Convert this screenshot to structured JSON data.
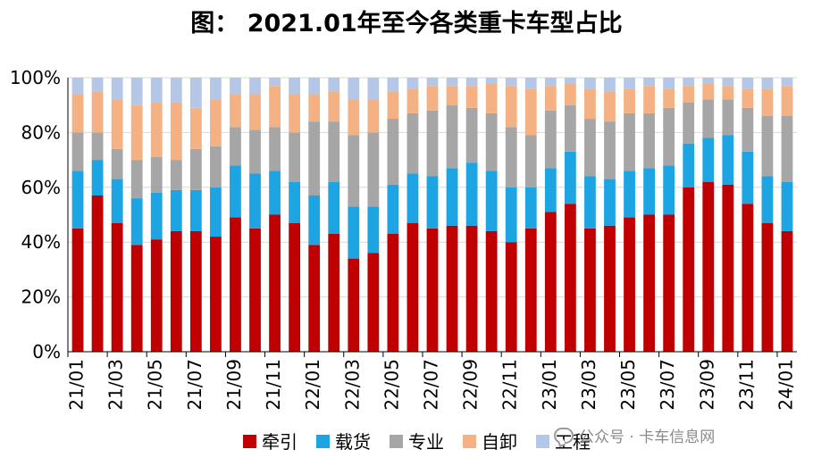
{
  "chart_data": {
    "type": "bar",
    "stacked": true,
    "title": "图： 2021.01年至今各类重卡车型占比",
    "ylim": [
      0,
      100
    ],
    "yticks": [
      "0%",
      "20%",
      "40%",
      "60%",
      "80%",
      "100%"
    ],
    "categories": [
      "21/01",
      "21/02",
      "21/03",
      "21/04",
      "21/05",
      "21/06",
      "21/07",
      "21/08",
      "21/09",
      "21/10",
      "21/11",
      "21/12",
      "22/01",
      "22/02",
      "22/03",
      "22/04",
      "22/05",
      "22/06",
      "22/07",
      "22/08",
      "22/09",
      "22/10",
      "22/11",
      "22/12",
      "23/01",
      "23/02",
      "23/03",
      "23/04",
      "23/05",
      "23/06",
      "23/07",
      "23/08",
      "23/09",
      "23/10",
      "23/11",
      "23/12",
      "24/01"
    ],
    "tick_labels": [
      "21/01",
      "21/03",
      "21/05",
      "21/07",
      "21/09",
      "21/11",
      "22/01",
      "22/03",
      "22/05",
      "22/07",
      "22/09",
      "22/11",
      "23/01",
      "23/03",
      "23/05",
      "23/07",
      "23/09",
      "23/11",
      "24/01"
    ],
    "legend_position": "bottom",
    "series": [
      {
        "name": "牵引",
        "color": "#C00000",
        "values": [
          45,
          57,
          47,
          39,
          41,
          44,
          44,
          42,
          49,
          45,
          50,
          47,
          39,
          43,
          34,
          36,
          43,
          47,
          45,
          46,
          46,
          44,
          40,
          45,
          51,
          54,
          45,
          46,
          49,
          50,
          50,
          60,
          62,
          61,
          54,
          47,
          44
        ]
      },
      {
        "name": "载货",
        "color": "#1CA4E3",
        "values": [
          21,
          13,
          16,
          17,
          17,
          15,
          15,
          18,
          19,
          20,
          16,
          15,
          18,
          19,
          19,
          17,
          18,
          18,
          19,
          21,
          23,
          22,
          20,
          15,
          16,
          19,
          19,
          17,
          17,
          17,
          18,
          16,
          16,
          18,
          19,
          17,
          18
        ]
      },
      {
        "name": "专业",
        "color": "#A6A6A6",
        "values": [
          14,
          10,
          11,
          14,
          13,
          11,
          15,
          15,
          14,
          16,
          16,
          18,
          27,
          22,
          26,
          27,
          24,
          22,
          24,
          23,
          20,
          21,
          22,
          19,
          21,
          17,
          21,
          21,
          21,
          20,
          21,
          15,
          14,
          13,
          16,
          22,
          24
        ]
      },
      {
        "name": "自卸",
        "color": "#F4B183",
        "values": [
          14,
          15,
          18,
          20,
          20,
          21,
          15,
          17,
          12,
          13,
          15,
          14,
          10,
          11,
          13,
          12,
          10,
          9,
          9,
          7,
          8,
          11,
          15,
          17,
          9,
          8,
          11,
          11,
          9,
          10,
          7,
          6,
          6,
          5,
          7,
          10,
          11
        ]
      },
      {
        "name": "工程",
        "color": "#B4C7E7",
        "values": [
          6,
          5,
          8,
          10,
          9,
          9,
          11,
          8,
          6,
          6,
          3,
          6,
          6,
          5,
          8,
          8,
          5,
          4,
          3,
          3,
          3,
          2,
          3,
          4,
          3,
          2,
          4,
          5,
          4,
          3,
          4,
          3,
          2,
          3,
          4,
          4,
          3
        ]
      }
    ]
  },
  "watermark": {
    "text": "公众号 · 卡车信息网",
    "icon": "chat-bubble-icon"
  }
}
